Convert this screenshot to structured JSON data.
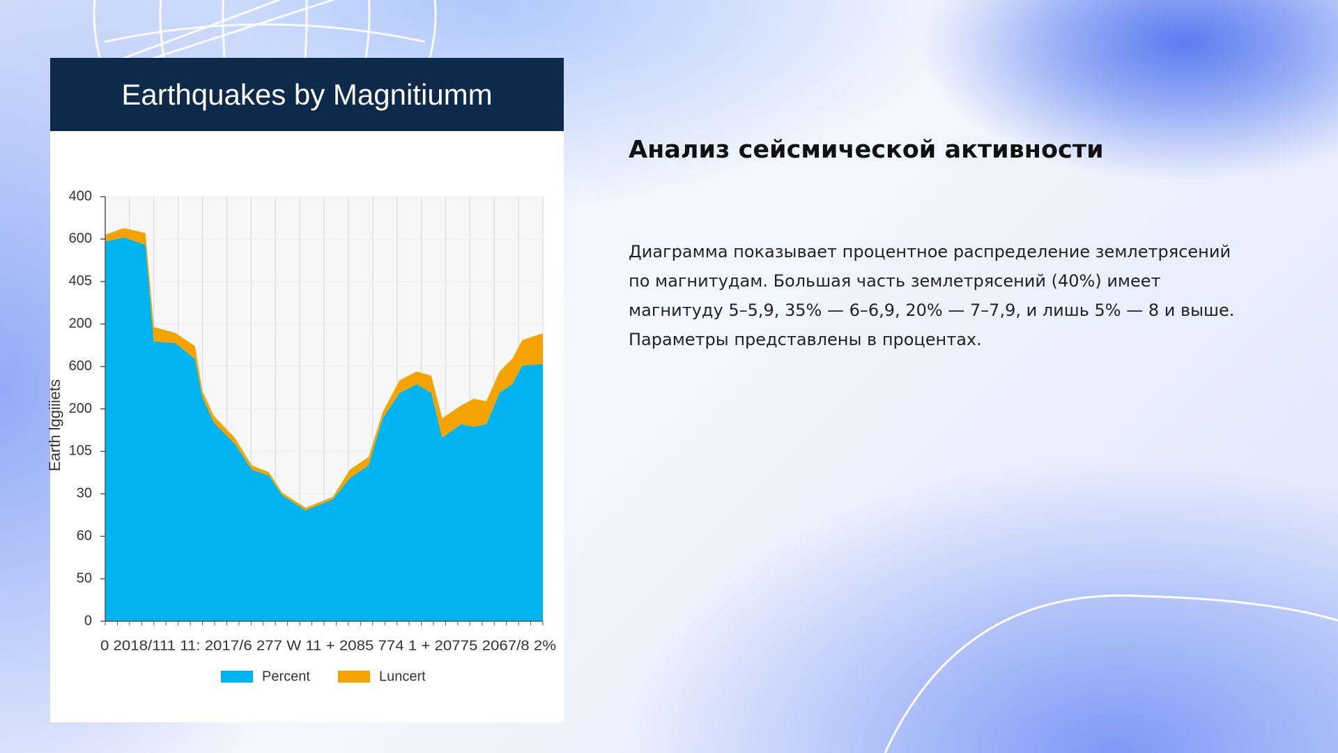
{
  "slide": {
    "heading": "Анализ сейсмической активности",
    "paragraph": "Диаграмма показывает процентное распределение землетрясений по магнитудам. Большая часть землетрясений (40%) имеет магнитуду 5–5,9, 35% — 6–6,9, 20% — 7–7,9, и лишь 5% — 8 и выше. Параметры представлены в процентах."
  },
  "chart_data": {
    "type": "stacked_area",
    "title": "Earthquakes by Magnitiumm",
    "y_label": "Earth lggiiiets",
    "x_axis_text": "0   2018/111 11: 2017/6 277 W 11 + 2085 774 1 + 20775 2067/8 2%",
    "x": [
      0,
      4.3,
      9.2,
      11.1,
      16,
      20.5,
      22.2,
      24.8,
      29.6,
      33.5,
      37.4,
      40.4,
      45.8,
      52,
      55.9,
      60.2,
      63.4,
      67.3,
      71.2,
      74.5,
      77,
      81.3,
      84.2,
      87.1,
      90.1,
      93,
      95.3,
      100
    ],
    "xlim": [
      0,
      100
    ],
    "series": [
      {
        "name": "Percent",
        "color": "#00b4f0",
        "values": [
          8.94,
          9.04,
          8.86,
          6.59,
          6.55,
          6.18,
          5.28,
          4.68,
          4.18,
          3.57,
          3.43,
          2.97,
          2.61,
          2.87,
          3.37,
          3.67,
          4.78,
          5.38,
          5.58,
          5.38,
          4.32,
          4.64,
          4.58,
          4.64,
          5.38,
          5.58,
          6.02,
          6.06
        ]
      },
      {
        "name": "Luncert",
        "color": "#f5a300",
        "values": [
          0.16,
          0.22,
          0.28,
          0.34,
          0.24,
          0.3,
          0.14,
          0.16,
          0.14,
          0.1,
          0.08,
          0.06,
          0.06,
          0.06,
          0.2,
          0.2,
          0.14,
          0.3,
          0.3,
          0.4,
          0.46,
          0.44,
          0.66,
          0.54,
          0.5,
          0.6,
          0.6,
          0.72
        ]
      }
    ],
    "ylim": [
      0,
      10
    ],
    "yticks": [
      {
        "value": 0,
        "label": "0"
      },
      {
        "value": 1,
        "label": "50"
      },
      {
        "value": 2,
        "label": "60"
      },
      {
        "value": 3,
        "label": "30"
      },
      {
        "value": 4,
        "label": "105"
      },
      {
        "value": 5,
        "label": "200"
      },
      {
        "value": 6,
        "label": "600"
      },
      {
        "value": 7,
        "label": "200"
      },
      {
        "value": 8,
        "label": "405"
      },
      {
        "value": 9,
        "label": "600"
      },
      {
        "value": 10,
        "label": "400"
      }
    ],
    "grid": true,
    "legend": "bottom"
  }
}
